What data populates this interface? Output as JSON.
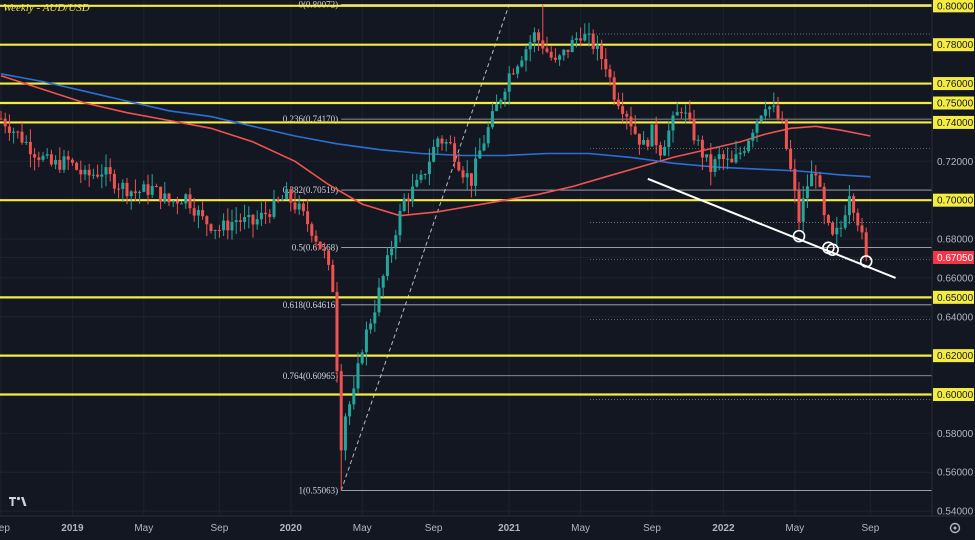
{
  "chart_data": {
    "type": "candlestick",
    "title": "Weekly - AUD/USD",
    "timeframe": "Weekly",
    "symbol": "AUD/USD",
    "y_axis_side": "right",
    "ylim": [
      0.538,
      0.803
    ],
    "y_ticks": [
      0.8,
      0.78,
      0.76,
      0.75,
      0.74,
      0.72,
      0.7,
      0.68,
      0.6705,
      0.66,
      0.65,
      0.64,
      0.62,
      0.6,
      0.58,
      0.56,
      0.54
    ],
    "y_tick_labels": [
      "0.80000",
      "0.78000",
      "0.76000",
      "0.75000",
      "0.74000",
      "0.72000",
      "0.70000",
      "0.68000",
      "0.67050",
      "0.66000",
      "0.65000",
      "0.64000",
      "0.62000",
      "0.60000",
      "0.58000",
      "0.56000",
      "0.54000"
    ],
    "yellow_labels": [
      "0.80000",
      "0.78000",
      "0.76000",
      "0.75000",
      "0.74000",
      "0.70000",
      "0.65000",
      "0.62000",
      "0.60000"
    ],
    "current_price": {
      "value": 0.6705,
      "label": "0.67050",
      "color": "#f23645"
    },
    "x_tick_labels": [
      "Sep",
      "2019",
      "May",
      "Sep",
      "2020",
      "May",
      "Sep",
      "2021",
      "May",
      "Sep",
      "2022",
      "May",
      "Sep"
    ],
    "bold_x_labels": [
      "2019",
      "2020",
      "2021",
      "2022"
    ],
    "x_tick_weeks": [
      0,
      17,
      34,
      52,
      69,
      86,
      103,
      121,
      138,
      155,
      172,
      189,
      207
    ],
    "horizontal_levels": [
      0.8,
      0.78,
      0.76,
      0.75,
      0.74,
      0.7,
      0.65,
      0.62,
      0.6
    ],
    "fibonacci": {
      "levels": [
        {
          "ratio": "0",
          "price": 0.80072,
          "label": "0(0.80072)"
        },
        {
          "ratio": "0.236",
          "price": 0.7417,
          "label": "0.236(0.74170)"
        },
        {
          "ratio": "0.382",
          "price": 0.70519,
          "label": "0.382(0.70519)"
        },
        {
          "ratio": "0.5",
          "price": 0.67568,
          "label": "0.5(0.67568)"
        },
        {
          "ratio": "0.618",
          "price": 0.64616,
          "label": "0.618(0.64616)"
        },
        {
          "ratio": "0.764",
          "price": 0.60965,
          "label": "0.764(0.60965)"
        },
        {
          "ratio": "1",
          "price": 0.55063,
          "label": "1(0.55063)"
        }
      ],
      "anchor_start": {
        "week": 81,
        "price": 0.55063
      },
      "anchor_end": {
        "week": 121,
        "price": 0.80072
      }
    },
    "trendline": {
      "start": {
        "week": 154,
        "price": 0.711
      },
      "end": {
        "week": 213,
        "price": 0.66
      }
    },
    "touch_points": [
      {
        "week": 190,
        "price": 0.6815
      },
      {
        "week": 197,
        "price": 0.6755
      },
      {
        "week": 198,
        "price": 0.6745
      },
      {
        "week": 206,
        "price": 0.6685
      }
    ],
    "moving_averages": [
      {
        "name": "",
        "color": "#f05350",
        "points": [
          [
            0,
            0.764
          ],
          [
            10,
            0.757
          ],
          [
            20,
            0.75
          ],
          [
            30,
            0.745
          ],
          [
            40,
            0.741
          ],
          [
            50,
            0.737
          ],
          [
            60,
            0.73
          ],
          [
            70,
            0.72
          ],
          [
            78,
            0.708
          ],
          [
            86,
            0.698
          ],
          [
            95,
            0.692
          ],
          [
            104,
            0.694
          ],
          [
            112,
            0.697
          ],
          [
            120,
            0.7
          ],
          [
            128,
            0.703
          ],
          [
            136,
            0.707
          ],
          [
            144,
            0.712
          ],
          [
            152,
            0.717
          ],
          [
            160,
            0.722
          ],
          [
            168,
            0.726
          ],
          [
            176,
            0.73
          ],
          [
            182,
            0.734
          ],
          [
            188,
            0.737
          ],
          [
            194,
            0.738
          ],
          [
            200,
            0.736
          ],
          [
            207,
            0.733
          ]
        ]
      },
      {
        "name": "",
        "color": "#2b6fd6",
        "points": [
          [
            0,
            0.765
          ],
          [
            10,
            0.761
          ],
          [
            20,
            0.756
          ],
          [
            30,
            0.751
          ],
          [
            40,
            0.746
          ],
          [
            50,
            0.743
          ],
          [
            60,
            0.738
          ],
          [
            70,
            0.733
          ],
          [
            80,
            0.729
          ],
          [
            90,
            0.726
          ],
          [
            100,
            0.724
          ],
          [
            110,
            0.723
          ],
          [
            120,
            0.723
          ],
          [
            130,
            0.724
          ],
          [
            140,
            0.724
          ],
          [
            150,
            0.722
          ],
          [
            160,
            0.719
          ],
          [
            170,
            0.717
          ],
          [
            180,
            0.716
          ],
          [
            190,
            0.715
          ],
          [
            200,
            0.713
          ],
          [
            207,
            0.712
          ]
        ]
      }
    ],
    "close_path": [
      [
        0,
        0.742
      ],
      [
        4,
        0.734
      ],
      [
        8,
        0.725
      ],
      [
        12,
        0.718
      ],
      [
        16,
        0.72
      ],
      [
        20,
        0.712
      ],
      [
        24,
        0.715
      ],
      [
        28,
        0.708
      ],
      [
        32,
        0.704
      ],
      [
        36,
        0.706
      ],
      [
        40,
        0.699
      ],
      [
        44,
        0.702
      ],
      [
        48,
        0.69
      ],
      [
        52,
        0.685
      ],
      [
        56,
        0.69
      ],
      [
        60,
        0.688
      ],
      [
        64,
        0.695
      ],
      [
        68,
        0.702
      ],
      [
        71,
        0.695
      ],
      [
        74,
        0.685
      ],
      [
        77,
        0.672
      ],
      [
        79,
        0.655
      ],
      [
        81,
        0.575
      ],
      [
        82,
        0.59
      ],
      [
        84,
        0.6
      ],
      [
        86,
        0.625
      ],
      [
        89,
        0.645
      ],
      [
        92,
        0.668
      ],
      [
        94,
        0.685
      ],
      [
        96,
        0.7
      ],
      [
        100,
        0.71
      ],
      [
        104,
        0.732
      ],
      [
        107,
        0.728
      ],
      [
        110,
        0.715
      ],
      [
        112,
        0.71
      ],
      [
        114,
        0.725
      ],
      [
        118,
        0.748
      ],
      [
        121,
        0.765
      ],
      [
        124,
        0.775
      ],
      [
        127,
        0.785
      ],
      [
        129,
        0.78
      ],
      [
        132,
        0.77
      ],
      [
        135,
        0.778
      ],
      [
        138,
        0.786
      ],
      [
        141,
        0.78
      ],
      [
        144,
        0.77
      ],
      [
        146,
        0.755
      ],
      [
        149,
        0.745
      ],
      [
        151,
        0.735
      ],
      [
        153,
        0.728
      ],
      [
        155,
        0.735
      ],
      [
        157,
        0.726
      ],
      [
        160,
        0.74
      ],
      [
        162,
        0.748
      ],
      [
        164,
        0.738
      ],
      [
        167,
        0.724
      ],
      [
        169,
        0.716
      ],
      [
        171,
        0.722
      ],
      [
        174,
        0.718
      ],
      [
        177,
        0.728
      ],
      [
        180,
        0.742
      ],
      [
        182,
        0.75
      ],
      [
        184,
        0.746
      ],
      [
        186,
        0.738
      ],
      [
        188,
        0.715
      ],
      [
        190,
        0.69
      ],
      [
        192,
        0.708
      ],
      [
        194,
        0.716
      ],
      [
        196,
        0.69
      ],
      [
        198,
        0.68
      ],
      [
        200,
        0.686
      ],
      [
        202,
        0.705
      ],
      [
        204,
        0.69
      ],
      [
        206,
        0.6705
      ]
    ]
  }
}
